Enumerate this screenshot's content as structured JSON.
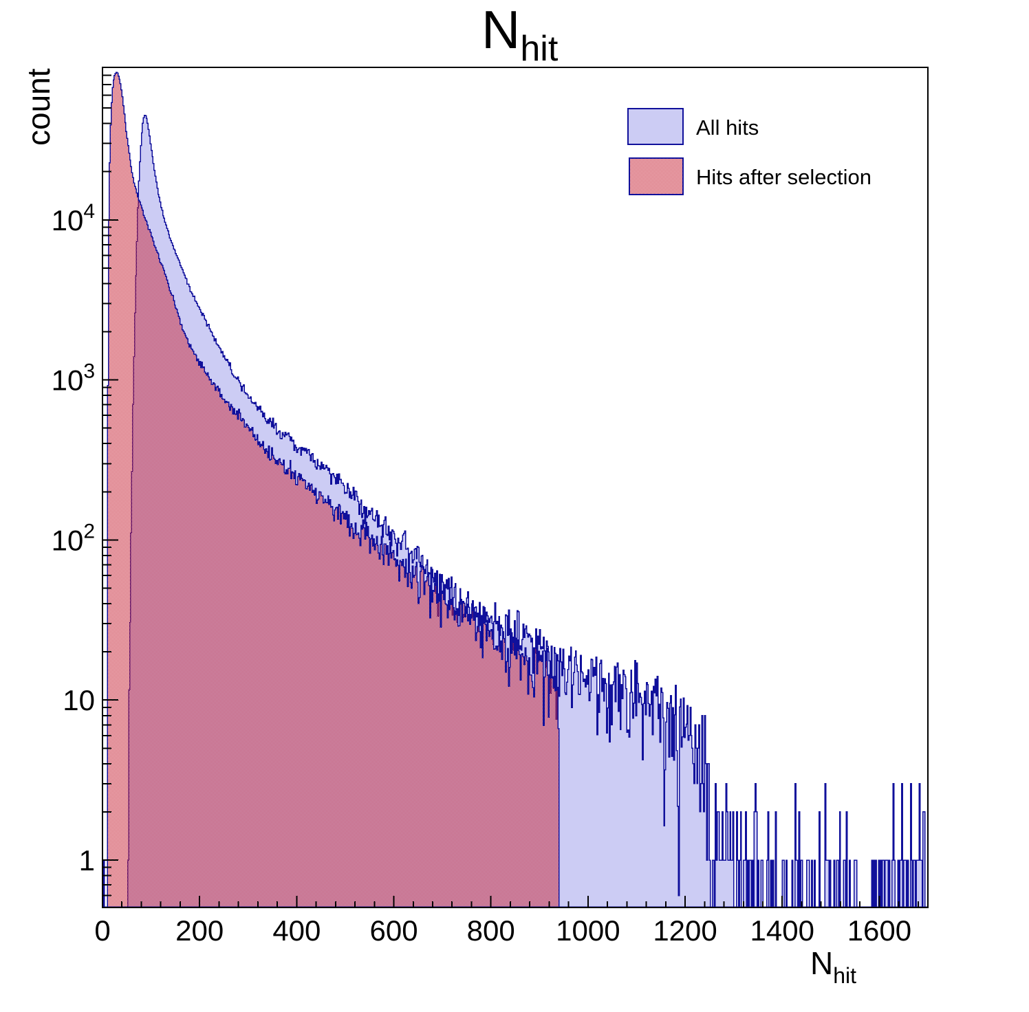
{
  "title": {
    "main": "N",
    "sub": "hit"
  },
  "axes": {
    "x": {
      "title_main": "N",
      "title_sub": "hit",
      "min": 0,
      "max": 1700,
      "major_tick_values": [
        0,
        200,
        400,
        600,
        800,
        1000,
        1200,
        1400,
        1600
      ],
      "minor_tick_step": 40
    },
    "y": {
      "title": "count",
      "scale": "log",
      "min": 0.5,
      "max": 90000,
      "decade_labels": [
        {
          "base": "1",
          "exp": "",
          "value": 1
        },
        {
          "base": "10",
          "exp": "",
          "value": 10
        },
        {
          "base": "10",
          "exp": "2",
          "value": 100
        },
        {
          "base": "10",
          "exp": "3",
          "value": 1000
        },
        {
          "base": "10",
          "exp": "4",
          "value": 10000
        }
      ]
    }
  },
  "legend": {
    "items": [
      {
        "label": "All hits",
        "swatch": "solid-blue"
      },
      {
        "label": "Hits after selection",
        "swatch": "red-hatch"
      }
    ]
  },
  "colors": {
    "hist_fill_blue": "#ccccf4",
    "hist_line": "#10109b",
    "hist_red": "#c8283a",
    "frame": "#000000",
    "background": "#ffffff"
  },
  "chart_data": {
    "type": "histogram-overlay",
    "note": "counts vs N_hit, log y-axis; envelopes are [N, count] control points read from the plot; bins are interpolated with Poisson-like fluctuations",
    "bin_width": 2,
    "noise_seed": 1337,
    "series": [
      {
        "name": "All hits",
        "style": "solid",
        "envelope": [
          [
            1,
            0
          ],
          [
            3,
            2.2
          ],
          [
            4,
            0
          ],
          [
            6,
            1.2
          ],
          [
            8,
            0
          ],
          [
            50,
            0
          ],
          [
            54,
            6
          ],
          [
            58,
            60
          ],
          [
            62,
            500
          ],
          [
            66,
            2000
          ],
          [
            70,
            6000
          ],
          [
            74,
            15000
          ],
          [
            78,
            27000
          ],
          [
            82,
            38500
          ],
          [
            86,
            45500
          ],
          [
            90,
            44500
          ],
          [
            95,
            37000
          ],
          [
            100,
            28500
          ],
          [
            107,
            20500
          ],
          [
            115,
            14500
          ],
          [
            125,
            10800
          ],
          [
            135,
            8400
          ],
          [
            150,
            6300
          ],
          [
            170,
            4400
          ],
          [
            190,
            3200
          ],
          [
            210,
            2450
          ],
          [
            230,
            1850
          ],
          [
            253,
            1350
          ],
          [
            280,
            980
          ],
          [
            310,
            720
          ],
          [
            336,
            590
          ],
          [
            370,
            460
          ],
          [
            400,
            385
          ],
          [
            446,
            300
          ],
          [
            500,
            215
          ],
          [
            560,
            142
          ],
          [
            600,
            106
          ],
          [
            646,
            78
          ],
          [
            700,
            52
          ],
          [
            750,
            41
          ],
          [
            789,
            36
          ],
          [
            850,
            27
          ],
          [
            900,
            21
          ],
          [
            950,
            17.5
          ],
          [
            1000,
            14.5
          ],
          [
            1075,
            12
          ],
          [
            1120,
            9.5
          ],
          [
            1160,
            8
          ],
          [
            1200,
            6.5
          ],
          [
            1242,
            4.6
          ],
          [
            1250,
            3.8
          ],
          [
            1256,
            1.8
          ],
          [
            1300,
            1.5
          ],
          [
            1340,
            1.0
          ],
          [
            1380,
            0.55
          ],
          [
            1450,
            0.5
          ],
          [
            1520,
            0.45
          ],
          [
            1600,
            0.5
          ],
          [
            1660,
            0.7
          ],
          [
            1692,
            1.0
          ],
          [
            1700,
            1.3
          ]
        ],
        "cutoff": 1700
      },
      {
        "name": "Hits after selection",
        "style": "hatch",
        "envelope": [
          [
            9,
            0
          ],
          [
            10,
            40
          ],
          [
            11,
            900
          ],
          [
            12,
            4500
          ],
          [
            13,
            10000
          ],
          [
            14,
            17000
          ],
          [
            16,
            31000
          ],
          [
            18,
            49000
          ],
          [
            21,
            67000
          ],
          [
            24,
            78500
          ],
          [
            28,
            83500
          ],
          [
            32,
            82000
          ],
          [
            36,
            74000
          ],
          [
            40,
            62000
          ],
          [
            45,
            46000
          ],
          [
            50,
            34000
          ],
          [
            55,
            26000
          ],
          [
            60,
            20500
          ],
          [
            65,
            17200
          ],
          [
            70,
            15000
          ],
          [
            78,
            12600
          ],
          [
            86,
            10600
          ],
          [
            95,
            9000
          ],
          [
            105,
            7300
          ],
          [
            115,
            6000
          ],
          [
            126,
            4900
          ],
          [
            140,
            3600
          ],
          [
            155,
            2600
          ],
          [
            169,
            1950
          ],
          [
            190,
            1450
          ],
          [
            210,
            1150
          ],
          [
            230,
            920
          ],
          [
            253,
            760
          ],
          [
            280,
            600
          ],
          [
            310,
            470
          ],
          [
            336,
            365
          ],
          [
            370,
            295
          ],
          [
            400,
            250
          ],
          [
            446,
            188
          ],
          [
            500,
            137
          ],
          [
            560,
            97
          ],
          [
            600,
            78
          ],
          [
            646,
            61
          ],
          [
            700,
            45
          ],
          [
            750,
            35
          ],
          [
            789,
            29
          ],
          [
            850,
            20.5
          ],
          [
            900,
            14.5
          ],
          [
            930,
            12
          ],
          [
            940,
            10.5
          ]
        ],
        "cutoff": 940
      }
    ]
  }
}
